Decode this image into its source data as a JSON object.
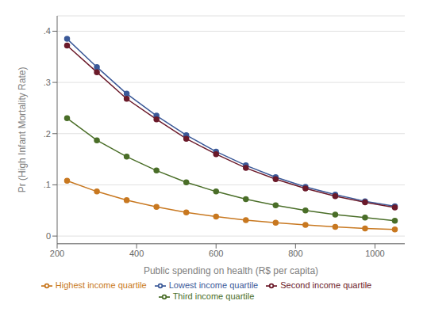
{
  "chart_data": {
    "type": "line",
    "x_label": "Public spending on health (R$ per capita)",
    "y_label": "Pr (High Infant Mortality Rate)",
    "x": [
      225,
      300,
      375,
      450,
      525,
      600,
      675,
      750,
      825,
      900,
      975,
      1050
    ],
    "series": [
      {
        "name": "Lowest income quartile",
        "color": "#3b5998",
        "marker": "circle",
        "values": [
          0.385,
          0.33,
          0.278,
          0.235,
          0.197,
          0.165,
          0.138,
          0.115,
          0.096,
          0.081,
          0.068,
          0.058
        ]
      },
      {
        "name": "Second income quartile",
        "color": "#6b1a2a",
        "marker": "circle",
        "values": [
          0.372,
          0.32,
          0.268,
          0.228,
          0.19,
          0.16,
          0.133,
          0.111,
          0.093,
          0.078,
          0.066,
          0.056
        ]
      },
      {
        "name": "Third income quartile",
        "color": "#4a6e28",
        "marker": "circle",
        "values": [
          0.23,
          0.187,
          0.155,
          0.128,
          0.105,
          0.087,
          0.072,
          0.06,
          0.05,
          0.042,
          0.036,
          0.03
        ]
      },
      {
        "name": "Highest income quartile",
        "color": "#c87820",
        "marker": "circle",
        "values": [
          0.108,
          0.087,
          0.07,
          0.057,
          0.046,
          0.038,
          0.031,
          0.026,
          0.022,
          0.018,
          0.015,
          0.013
        ]
      }
    ],
    "xlim": [
      200,
      1075
    ],
    "xticks": [
      200,
      400,
      600,
      800,
      1000
    ],
    "ylim": [
      -0.015,
      0.43
    ],
    "yticks": [
      0,
      {
        "value": 0.1,
        "label": ".1"
      },
      {
        "value": 0.2,
        "label": ".2"
      },
      {
        "value": 0.3,
        "label": ".3"
      },
      {
        "value": 0.4,
        "label": ".4"
      }
    ],
    "grid": true,
    "legend": "bottom"
  }
}
